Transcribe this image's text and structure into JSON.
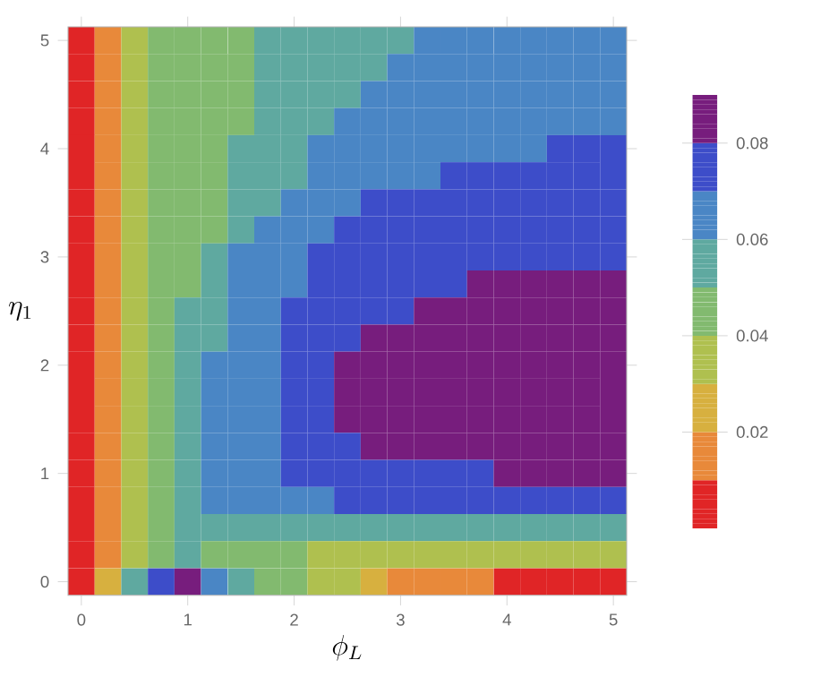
{
  "chart_data": {
    "type": "heatmap",
    "xlabel": "\\phi_L",
    "ylabel": "\\eta_1",
    "clim": [
      0,
      0.09
    ],
    "cticks": [
      0.02,
      0.04,
      0.06,
      0.08
    ],
    "categories": [
      "0",
      null,
      null,
      null,
      "1",
      null,
      null,
      null,
      "2",
      null,
      null,
      null,
      "3",
      null,
      null,
      null,
      "4",
      null,
      null,
      null,
      "5"
    ],
    "y_categories": [
      "5",
      null,
      null,
      null,
      "4",
      null,
      null,
      null,
      "3",
      null,
      null,
      null,
      "2",
      null,
      null,
      null,
      "1",
      null,
      null,
      null,
      "0"
    ],
    "cells": [
      [
        0.005,
        0.015,
        0.035,
        0.045,
        0.045,
        0.045,
        0.045,
        0.055,
        0.055,
        0.055,
        0.055,
        0.055,
        0.055,
        0.065,
        0.065,
        0.065,
        0.065,
        0.065,
        0.065,
        0.065,
        0.065
      ],
      [
        0.005,
        0.015,
        0.035,
        0.045,
        0.045,
        0.045,
        0.045,
        0.055,
        0.055,
        0.055,
        0.055,
        0.055,
        0.065,
        0.065,
        0.065,
        0.065,
        0.065,
        0.065,
        0.065,
        0.065,
        0.065
      ],
      [
        0.005,
        0.015,
        0.035,
        0.045,
        0.045,
        0.045,
        0.045,
        0.055,
        0.055,
        0.055,
        0.055,
        0.065,
        0.065,
        0.065,
        0.065,
        0.065,
        0.065,
        0.065,
        0.065,
        0.065,
        0.065
      ],
      [
        0.005,
        0.015,
        0.035,
        0.045,
        0.045,
        0.045,
        0.045,
        0.055,
        0.055,
        0.055,
        0.065,
        0.065,
        0.065,
        0.065,
        0.065,
        0.065,
        0.065,
        0.065,
        0.065,
        0.065,
        0.065
      ],
      [
        0.005,
        0.015,
        0.035,
        0.045,
        0.045,
        0.045,
        0.055,
        0.055,
        0.055,
        0.065,
        0.065,
        0.065,
        0.065,
        0.065,
        0.065,
        0.065,
        0.065,
        0.065,
        0.075,
        0.075,
        0.075
      ],
      [
        0.005,
        0.015,
        0.035,
        0.045,
        0.045,
        0.045,
        0.055,
        0.055,
        0.055,
        0.065,
        0.065,
        0.065,
        0.065,
        0.065,
        0.075,
        0.075,
        0.075,
        0.075,
        0.075,
        0.075,
        0.075
      ],
      [
        0.005,
        0.015,
        0.035,
        0.045,
        0.045,
        0.045,
        0.055,
        0.055,
        0.065,
        0.065,
        0.065,
        0.075,
        0.075,
        0.075,
        0.075,
        0.075,
        0.075,
        0.075,
        0.075,
        0.075,
        0.075
      ],
      [
        0.005,
        0.015,
        0.035,
        0.045,
        0.045,
        0.045,
        0.055,
        0.065,
        0.065,
        0.065,
        0.075,
        0.075,
        0.075,
        0.075,
        0.075,
        0.075,
        0.075,
        0.075,
        0.075,
        0.075,
        0.075
      ],
      [
        0.005,
        0.015,
        0.035,
        0.045,
        0.045,
        0.055,
        0.065,
        0.065,
        0.065,
        0.075,
        0.075,
        0.075,
        0.075,
        0.075,
        0.075,
        0.075,
        0.075,
        0.075,
        0.075,
        0.075,
        0.075
      ],
      [
        0.005,
        0.015,
        0.035,
        0.045,
        0.045,
        0.055,
        0.065,
        0.065,
        0.065,
        0.075,
        0.075,
        0.075,
        0.075,
        0.075,
        0.075,
        0.085,
        0.085,
        0.085,
        0.085,
        0.085,
        0.085
      ],
      [
        0.005,
        0.015,
        0.035,
        0.045,
        0.055,
        0.055,
        0.065,
        0.065,
        0.075,
        0.075,
        0.075,
        0.075,
        0.075,
        0.085,
        0.085,
        0.085,
        0.085,
        0.085,
        0.085,
        0.085,
        0.085
      ],
      [
        0.005,
        0.015,
        0.035,
        0.045,
        0.055,
        0.055,
        0.065,
        0.065,
        0.075,
        0.075,
        0.075,
        0.085,
        0.085,
        0.085,
        0.085,
        0.085,
        0.085,
        0.085,
        0.085,
        0.085,
        0.085
      ],
      [
        0.005,
        0.015,
        0.035,
        0.045,
        0.055,
        0.065,
        0.065,
        0.065,
        0.075,
        0.075,
        0.085,
        0.085,
        0.085,
        0.085,
        0.085,
        0.085,
        0.085,
        0.085,
        0.085,
        0.085,
        0.085
      ],
      [
        0.005,
        0.015,
        0.035,
        0.045,
        0.055,
        0.065,
        0.065,
        0.065,
        0.075,
        0.075,
        0.085,
        0.085,
        0.085,
        0.085,
        0.085,
        0.085,
        0.085,
        0.085,
        0.085,
        0.085,
        0.085
      ],
      [
        0.005,
        0.015,
        0.035,
        0.045,
        0.055,
        0.065,
        0.065,
        0.065,
        0.075,
        0.075,
        0.085,
        0.085,
        0.085,
        0.085,
        0.085,
        0.085,
        0.085,
        0.085,
        0.085,
        0.085,
        0.085
      ],
      [
        0.005,
        0.015,
        0.035,
        0.045,
        0.055,
        0.065,
        0.065,
        0.065,
        0.075,
        0.075,
        0.075,
        0.085,
        0.085,
        0.085,
        0.085,
        0.085,
        0.085,
        0.085,
        0.085,
        0.085,
        0.085
      ],
      [
        0.005,
        0.015,
        0.035,
        0.045,
        0.055,
        0.065,
        0.065,
        0.065,
        0.075,
        0.075,
        0.075,
        0.075,
        0.075,
        0.075,
        0.075,
        0.075,
        0.085,
        0.085,
        0.085,
        0.085,
        0.085
      ],
      [
        0.005,
        0.015,
        0.035,
        0.045,
        0.055,
        0.065,
        0.065,
        0.065,
        0.065,
        0.065,
        0.075,
        0.075,
        0.075,
        0.075,
        0.075,
        0.075,
        0.075,
        0.075,
        0.075,
        0.075,
        0.075
      ],
      [
        0.005,
        0.015,
        0.035,
        0.045,
        0.055,
        0.055,
        0.055,
        0.055,
        0.055,
        0.055,
        0.055,
        0.055,
        0.055,
        0.055,
        0.055,
        0.055,
        0.055,
        0.055,
        0.055,
        0.055,
        0.055
      ],
      [
        0.005,
        0.015,
        0.035,
        0.045,
        0.055,
        0.045,
        0.045,
        0.045,
        0.045,
        0.035,
        0.035,
        0.035,
        0.035,
        0.035,
        0.035,
        0.035,
        0.035,
        0.035,
        0.035,
        0.035,
        0.035
      ],
      [
        0.005,
        0.025,
        0.055,
        0.075,
        0.085,
        0.065,
        0.055,
        0.045,
        0.045,
        0.035,
        0.035,
        0.025,
        0.015,
        0.015,
        0.015,
        0.015,
        0.005,
        0.005,
        0.005,
        0.005,
        0.005
      ]
    ]
  }
}
